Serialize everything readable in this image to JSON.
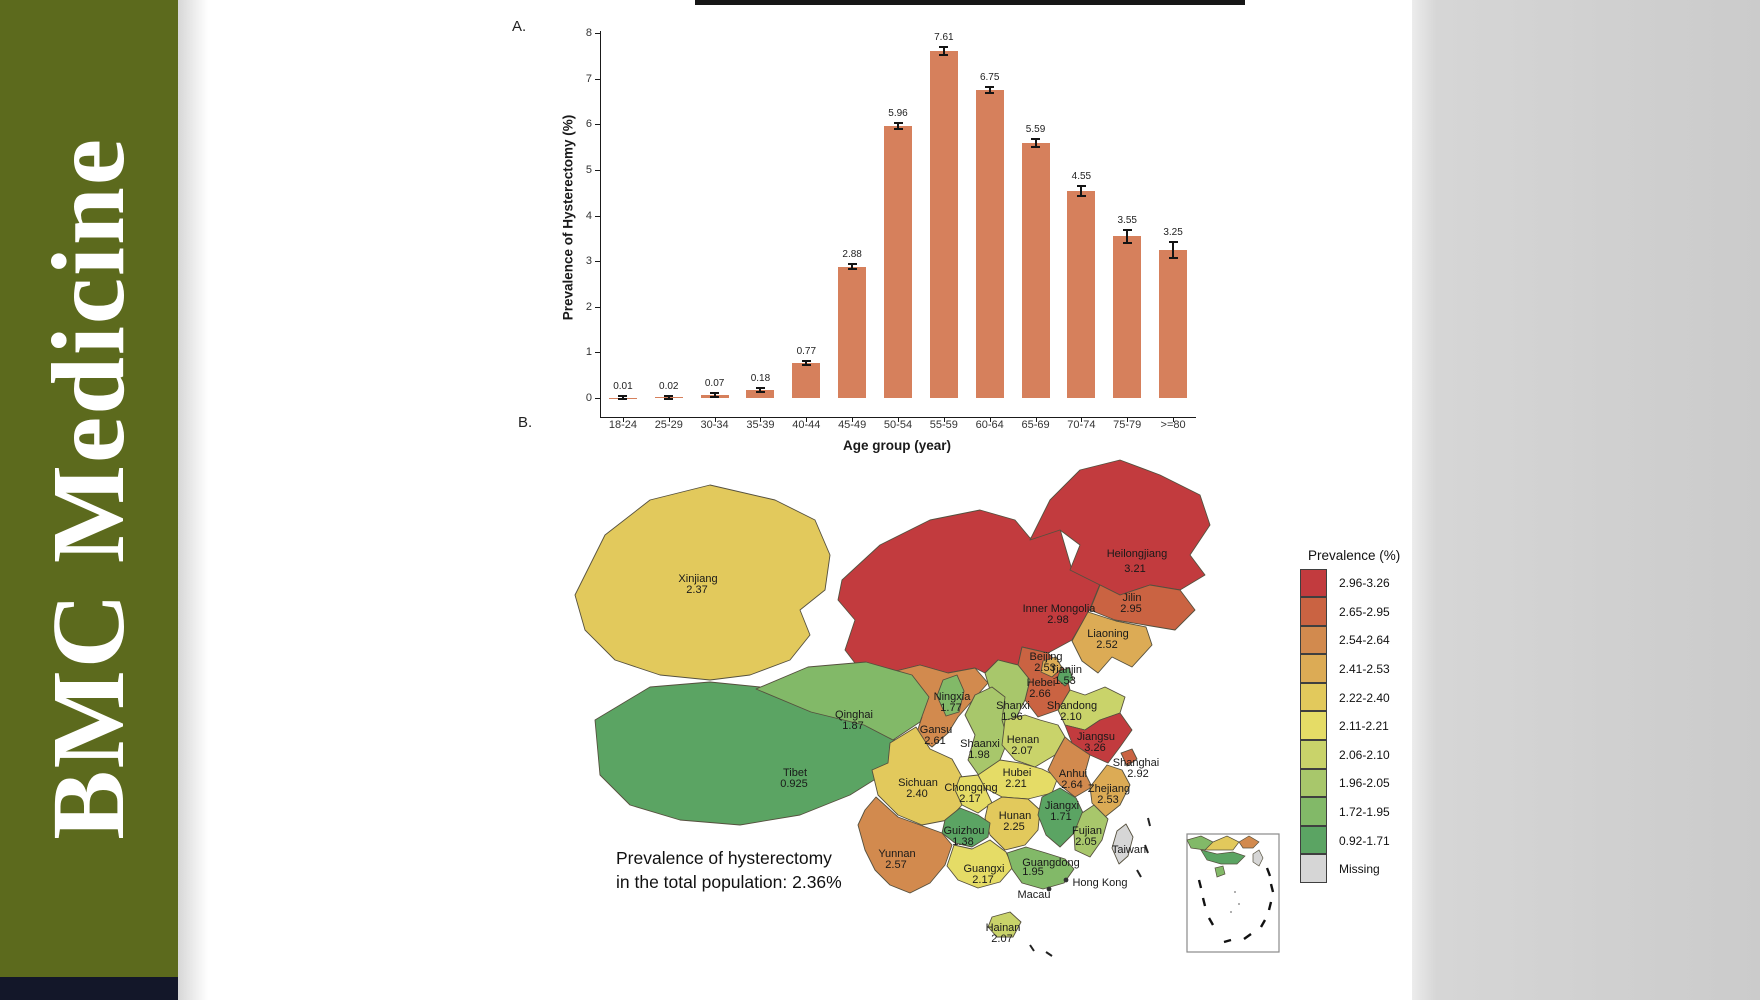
{
  "journal": {
    "title": "BMC Medicine",
    "banner_color": "#5c6a1d",
    "banner_strip_color": "#131729"
  },
  "panel_a": {
    "label": "A."
  },
  "panel_b": {
    "label": "B."
  },
  "map_note": {
    "line1": "Prevalence of hysterectomy",
    "line2": "in the total population: 2.36%"
  },
  "chart_data": [
    {
      "type": "bar",
      "title": "",
      "xlabel": "Age group (year)",
      "ylabel": "Prevalence of Hysterectomy (%)",
      "ylim": [
        0,
        8
      ],
      "yticks": [
        0,
        1,
        2,
        3,
        4,
        5,
        6,
        7,
        8
      ],
      "grid": false,
      "bar_color": "#d6805c",
      "categories": [
        "18-24",
        "25-29",
        "30-34",
        "35-39",
        "40-44",
        "45-49",
        "50-54",
        "55-59",
        "60-64",
        "65-69",
        "70-74",
        "75-79",
        ">=80"
      ],
      "values": [
        0.01,
        0.02,
        0.07,
        0.18,
        0.77,
        2.88,
        5.96,
        7.61,
        6.75,
        5.59,
        4.55,
        3.55,
        3.25
      ],
      "value_labels": [
        "0.01",
        "0.02",
        "0.07",
        "0.18",
        "0.77",
        "2.88",
        "5.96",
        "7.61",
        "6.75",
        "5.59",
        "4.55",
        "3.55",
        "3.25"
      ],
      "errors": [
        0.03,
        0.03,
        0.04,
        0.05,
        0.05,
        0.06,
        0.06,
        0.08,
        0.07,
        0.08,
        0.11,
        0.14,
        0.18
      ]
    },
    {
      "type": "choropleth",
      "region": "China",
      "legend_title": "Prevalence (%)",
      "legend_position": "right",
      "bins": [
        {
          "range": "2.96-3.26",
          "color": "#c23b3e"
        },
        {
          "range": "2.65-2.95",
          "color": "#ca6342"
        },
        {
          "range": "2.54-2.64",
          "color": "#d28a4e"
        },
        {
          "range": "2.41-2.53",
          "color": "#dcab55"
        },
        {
          "range": "2.22-2.40",
          "color": "#e2c95c"
        },
        {
          "range": "2.11-2.21",
          "color": "#e5dc66"
        },
        {
          "range": "2.06-2.10",
          "color": "#c9d36a"
        },
        {
          "range": "1.96-2.05",
          "color": "#a8c76b"
        },
        {
          "range": "1.72-1.95",
          "color": "#82b968"
        },
        {
          "range": "0.92-1.71",
          "color": "#5ba463"
        },
        {
          "range": "Missing",
          "color": "#d6d6d6"
        }
      ],
      "provinces": [
        {
          "name": "Heilongjiang",
          "value": "3.21"
        },
        {
          "name": "Inner Mongolia",
          "value": "2.98"
        },
        {
          "name": "Jilin",
          "value": "2.95"
        },
        {
          "name": "Liaoning",
          "value": "2.52"
        },
        {
          "name": "Xinjiang",
          "value": "2.37"
        },
        {
          "name": "Beijing",
          "value": "2.53"
        },
        {
          "name": "Tianjin",
          "value": "1.53"
        },
        {
          "name": "Hebei",
          "value": "2.66"
        },
        {
          "name": "Shanxi",
          "value": "1.96"
        },
        {
          "name": "Shandong",
          "value": "2.10"
        },
        {
          "name": "Ningxia",
          "value": "1.77"
        },
        {
          "name": "Qinghai",
          "value": "1.87"
        },
        {
          "name": "Gansu",
          "value": "2.61"
        },
        {
          "name": "Shaanxi",
          "value": "1.98"
        },
        {
          "name": "Henan",
          "value": "2.07"
        },
        {
          "name": "Jiangsu",
          "value": "3.26"
        },
        {
          "name": "Shanghai",
          "value": "2.92"
        },
        {
          "name": "Anhui",
          "value": "2.64"
        },
        {
          "name": "Zhejiang",
          "value": "2.53"
        },
        {
          "name": "Hubei",
          "value": "2.21"
        },
        {
          "name": "Chongqing",
          "value": "2.17"
        },
        {
          "name": "Sichuan",
          "value": "2.40"
        },
        {
          "name": "Tibet",
          "value": "0.925"
        },
        {
          "name": "Hunan",
          "value": "2.25"
        },
        {
          "name": "Jiangxi",
          "value": "1.71"
        },
        {
          "name": "Fujian",
          "value": "2.05"
        },
        {
          "name": "Guizhou",
          "value": "1.38"
        },
        {
          "name": "Yunnan",
          "value": "2.57"
        },
        {
          "name": "Guangxi",
          "value": "2.17"
        },
        {
          "name": "Guangdong",
          "value": "1.95"
        },
        {
          "name": "Hainan",
          "value": "2.07"
        },
        {
          "name": "Taiwan",
          "value": "Missing"
        },
        {
          "name": "Hong Kong",
          "value": null
        },
        {
          "name": "Macau",
          "value": null
        }
      ]
    }
  ]
}
